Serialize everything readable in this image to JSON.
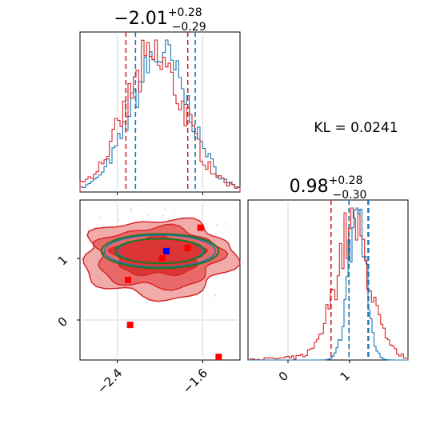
{
  "chart_data": {
    "type": "corner",
    "parameters": [
      "x",
      "y"
    ],
    "titles": [
      {
        "value": "−2.01",
        "upper": "+0.28",
        "lower": "−0.29"
      },
      {
        "value": "0.98",
        "upper": "+0.28",
        "lower": "−0.30"
      }
    ],
    "annotation": "KL = 0.0241",
    "x_range": [
      -2.75,
      -1.25
    ],
    "y_range": [
      -0.65,
      1.95
    ],
    "x_ticks": [
      {
        "value": -2.4,
        "label": "−2.4"
      },
      {
        "value": -1.6,
        "label": "−1.6"
      }
    ],
    "y_ticks": [
      {
        "value": 0,
        "label": "0"
      },
      {
        "value": 1,
        "label": "1"
      }
    ],
    "y_hist_range": [
      -0.65,
      1.95
    ],
    "y_hist_ticks": [
      {
        "value": 0,
        "label": "0"
      },
      {
        "value": 1,
        "label": "1"
      }
    ],
    "colors": {
      "blue": "#1f77b4",
      "red": "#d62728",
      "green": "#1a7a1a",
      "grid": "#cccccc",
      "marker_blue": "#0000ff",
      "marker_red": "#ff0000"
    },
    "grid": true,
    "hist_x_blue_quantiles": [
      -2.23,
      -1.67
    ],
    "hist_x_red_quantiles": [
      -2.32,
      -1.74
    ],
    "hist_y_blue_quantiles": [
      0.99,
      1.31
    ],
    "hist_y_red_quantiles": [
      0.7,
      1.3
    ],
    "x_blue_mean": -2.0,
    "x_blue_sd": 0.27,
    "x_red_mean": -2.05,
    "x_red_sd": 0.28,
    "y_blue_mean": 1.12,
    "y_blue_sd": 0.14,
    "y_red_mean": 1.05,
    "y_red_sd": 0.28,
    "ellipse_center": [
      -2.0,
      1.12
    ],
    "ellipse_blue_semi_axes": [
      [
        0.4,
        0.2
      ],
      [
        0.52,
        0.26
      ]
    ],
    "ellipse_green_semi_axes": [
      [
        0.42,
        0.2
      ],
      [
        0.55,
        0.28
      ]
    ],
    "red_contour_semi_axes": [
      [
        0.42,
        0.3
      ],
      [
        0.58,
        0.48
      ],
      [
        0.7,
        0.62
      ]
    ],
    "red_contour_offset": [
      -0.02,
      -0.05
    ],
    "marker_points_red": [
      [
        -1.62,
        1.5
      ],
      [
        -1.74,
        1.17
      ],
      [
        -1.98,
        1.0
      ],
      [
        -2.3,
        0.65
      ],
      [
        -2.28,
        -0.08
      ],
      [
        -1.45,
        -0.6
      ]
    ],
    "marker_points_blue": [
      [
        -1.94,
        1.12
      ]
    ]
  }
}
